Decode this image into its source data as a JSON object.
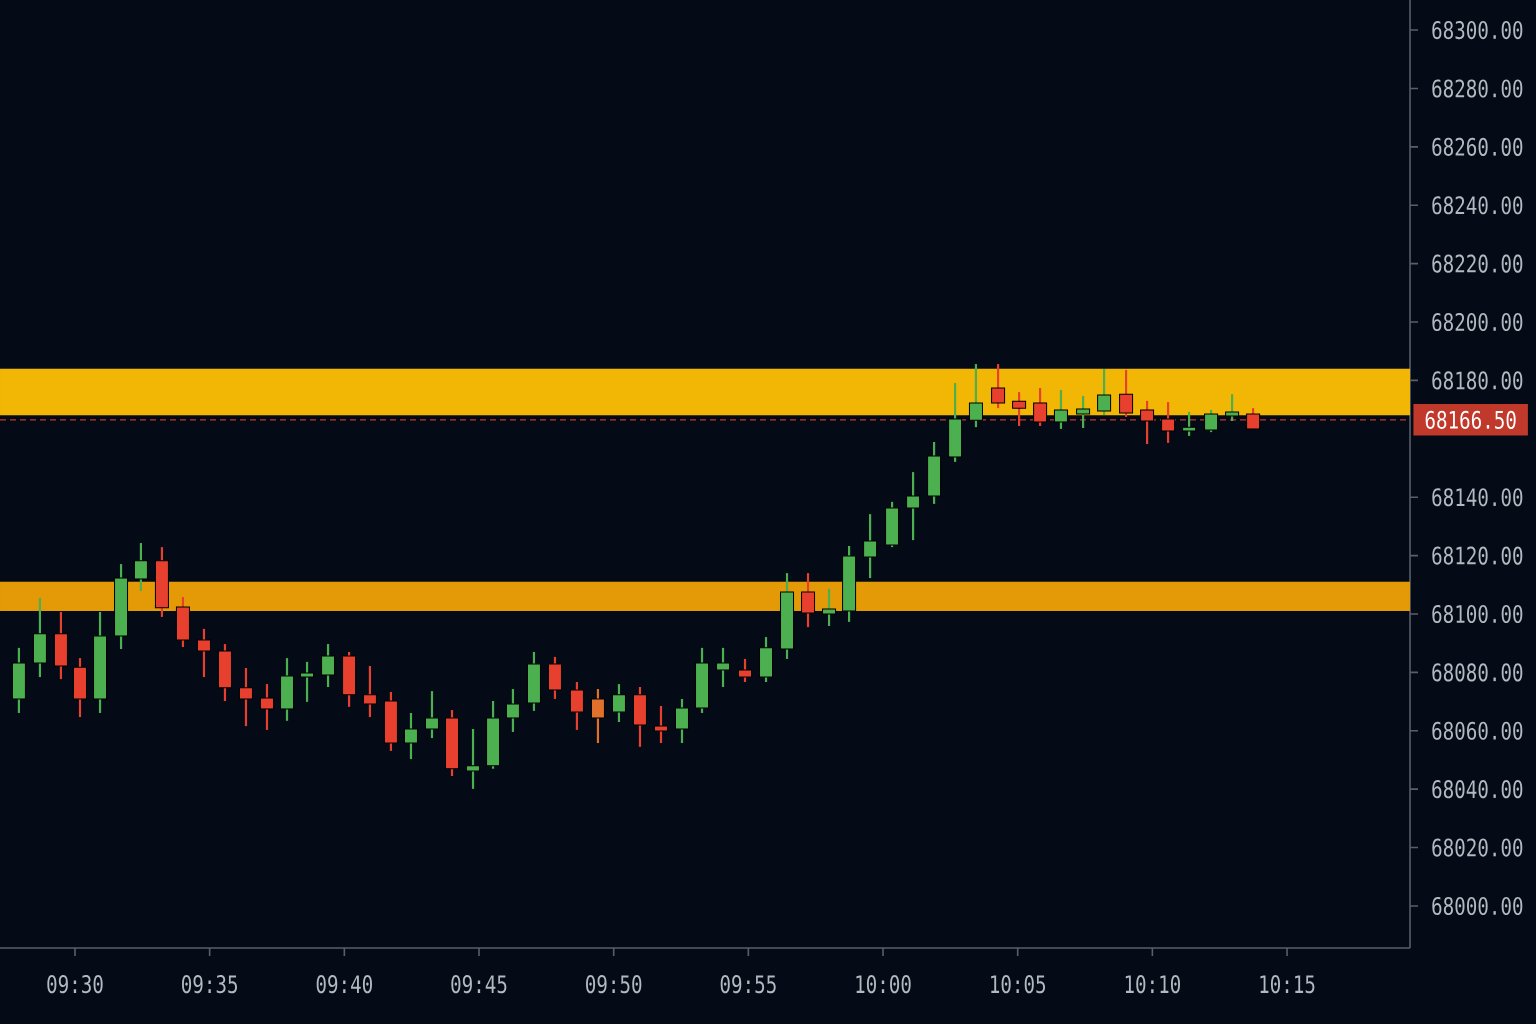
{
  "chart_data": {
    "type": "candlestick",
    "x": [
      9.4653,
      9.4783,
      9.4913,
      9.5031,
      9.5155,
      9.5285,
      9.5408,
      9.5538,
      9.5668,
      9.5798,
      9.5928,
      9.6058,
      9.6188,
      9.6312,
      9.6436,
      9.6566,
      9.6696,
      9.6825,
      9.6955,
      9.7079,
      9.7209,
      9.7333,
      9.7463,
      9.7587,
      9.771,
      9.784,
      9.797,
      9.8106,
      9.8236,
      9.8366,
      9.8496,
      9.8626,
      9.8756,
      9.888,
      9.901,
      9.9146,
      9.9276,
      9.9406,
      9.9536,
      9.9666,
      9.979,
      9.992,
      10.0056,
      10.0186,
      10.0316,
      10.0446,
      10.0575,
      10.0712,
      10.0842,
      10.0972,
      10.1101,
      10.1238,
      10.1368,
      10.1504,
      10.1634,
      10.1764,
      10.1894,
      10.203,
      10.216,
      10.229
    ],
    "ohlc": [
      [
        68070.9,
        68088.4,
        68066.1,
        68083.2
      ],
      [
        68083.2,
        68105.5,
        68078.4,
        68093.2
      ],
      [
        68093.2,
        68100.7,
        68077.7,
        68082.2
      ],
      [
        68081.8,
        68084.9,
        68064.7,
        68070.9
      ],
      [
        68070.9,
        68100.7,
        68066.1,
        68092.5
      ],
      [
        68092.5,
        68117.1,
        68088.0,
        68112.3
      ],
      [
        68112.0,
        68124.3,
        68107.9,
        68118.2
      ],
      [
        68118.2,
        68122.9,
        68099.0,
        68102.1
      ],
      [
        68102.4,
        68105.8,
        68088.7,
        68091.1
      ],
      [
        68091.1,
        68094.9,
        68078.4,
        68087.3
      ],
      [
        68087.3,
        68089.7,
        68070.2,
        68074.7
      ],
      [
        68074.7,
        68081.5,
        68061.6,
        68070.9
      ],
      [
        68071.2,
        68076.0,
        68060.3,
        68067.5
      ],
      [
        68067.5,
        68084.9,
        68063.4,
        68078.8
      ],
      [
        68078.4,
        68083.6,
        68069.9,
        68079.8
      ],
      [
        68079.1,
        68089.7,
        68075.0,
        68085.6
      ],
      [
        68085.6,
        68087.0,
        68068.2,
        68072.3
      ],
      [
        68072.3,
        68082.2,
        68064.7,
        68069.2
      ],
      [
        68070.2,
        68073.3,
        68053.1,
        68055.8
      ],
      [
        68055.8,
        68066.1,
        68050.3,
        68060.6
      ],
      [
        68060.6,
        68073.6,
        68057.5,
        68064.4
      ],
      [
        68064.4,
        68067.1,
        68044.5,
        68047.0
      ],
      [
        68046.2,
        68060.6,
        68040.1,
        68048.0
      ],
      [
        68048.0,
        68070.2,
        68047.0,
        68064.4
      ],
      [
        68064.4,
        68074.3,
        68059.6,
        68069.2
      ],
      [
        68069.5,
        68087.0,
        68066.8,
        68082.9
      ],
      [
        68082.9,
        68085.3,
        68070.9,
        68074.0
      ],
      [
        68074.0,
        68076.7,
        68060.3,
        68066.4
      ],
      [
        68070.9,
        68074.3,
        68055.8,
        68064.4
      ],
      [
        68066.4,
        68076.0,
        68063.0,
        68072.3
      ],
      [
        68072.3,
        68075.0,
        68054.5,
        68062.0
      ],
      [
        68061.6,
        68068.5,
        68055.8,
        68059.9
      ],
      [
        68060.6,
        68070.9,
        68055.8,
        68067.8
      ],
      [
        68067.8,
        68088.4,
        68066.1,
        68083.2
      ],
      [
        68080.8,
        68088.4,
        68075.0,
        68083.2
      ],
      [
        68080.8,
        68084.6,
        68076.7,
        68078.4
      ],
      [
        68078.4,
        68092.1,
        68076.7,
        68088.4
      ],
      [
        68088.0,
        68114.0,
        68084.6,
        68107.5
      ],
      [
        68107.5,
        68114.0,
        68095.5,
        68100.3
      ],
      [
        68100.0,
        68108.6,
        68095.9,
        68101.7
      ],
      [
        68101.0,
        68123.3,
        68097.3,
        68119.9
      ],
      [
        68119.5,
        68134.2,
        68112.3,
        68125.0
      ],
      [
        68123.6,
        68138.4,
        68122.9,
        68136.3
      ],
      [
        68136.3,
        68148.6,
        68125.3,
        68140.4
      ],
      [
        68140.4,
        68158.9,
        68137.7,
        68154.1
      ],
      [
        68153.8,
        68179.1,
        68152.1,
        68166.8
      ],
      [
        68166.4,
        68185.6,
        68164.0,
        68172.3
      ],
      [
        68177.4,
        68185.6,
        68170.5,
        68172.3
      ],
      [
        68172.9,
        68176.0,
        68164.4,
        68170.5
      ],
      [
        68172.3,
        68177.4,
        68164.4,
        68165.8
      ],
      [
        68165.8,
        68176.7,
        68163.4,
        68169.9
      ],
      [
        68168.5,
        68174.7,
        68163.7,
        68170.2
      ],
      [
        68169.5,
        68183.9,
        68168.2,
        68175.0
      ],
      [
        68175.3,
        68183.6,
        68167.5,
        68168.8
      ],
      [
        68169.9,
        68173.0,
        68158.2,
        68166.1
      ],
      [
        68166.8,
        68172.6,
        68158.6,
        68162.7
      ],
      [
        68162.7,
        68169.2,
        68161.0,
        68164.0
      ],
      [
        68163.0,
        68169.9,
        68162.3,
        68168.5
      ],
      [
        68167.8,
        68175.3,
        68166.1,
        68169.2
      ],
      [
        68168.5,
        68170.5,
        68163.4,
        68163.4
      ]
    ],
    "colors": [
      "#4caf50",
      "#4caf50",
      "#e8402f",
      "#e8402f",
      "#4caf50",
      "#4caf50",
      "#4caf50",
      "#e8402f",
      "#e8402f",
      "#e8402f",
      "#e8402f",
      "#e8402f",
      "#e8402f",
      "#4caf50",
      "#4caf50",
      "#4caf50",
      "#e8402f",
      "#e8402f",
      "#e8402f",
      "#4caf50",
      "#4caf50",
      "#e8402f",
      "#4caf50",
      "#4caf50",
      "#4caf50",
      "#4caf50",
      "#e8402f",
      "#e8402f",
      "#e0702c",
      "#4caf50",
      "#e8402f",
      "#e8402f",
      "#4caf50",
      "#4caf50",
      "#4caf50",
      "#e8402f",
      "#4caf50",
      "#4caf50",
      "#e8402f",
      "#4caf50",
      "#4caf50",
      "#4caf50",
      "#4caf50",
      "#4caf50",
      "#4caf50",
      "#4caf50",
      "#4caf50",
      "#e8402f",
      "#e8402f",
      "#e8402f",
      "#4caf50",
      "#4caf50",
      "#4caf50",
      "#e8402f",
      "#e8402f",
      "#e8402f",
      "#4caf50",
      "#4caf50",
      "#4caf50",
      "#e8402f"
    ],
    "xlim": [
      9.4536,
      10.3261
    ],
    "ylim": [
      67985.6,
      68310.3
    ],
    "xticks": [
      {
        "value": 9.5,
        "label": "09:30"
      },
      {
        "value": 9.583333,
        "label": "09:35"
      },
      {
        "value": 9.666667,
        "label": "09:40"
      },
      {
        "value": 9.75,
        "label": "09:45"
      },
      {
        "value": 9.833333,
        "label": "09:50"
      },
      {
        "value": 9.916667,
        "label": "09:55"
      },
      {
        "value": 10.0,
        "label": "10:00"
      },
      {
        "value": 10.083333,
        "label": "10:05"
      },
      {
        "value": 10.166667,
        "label": "10:10"
      },
      {
        "value": 10.25,
        "label": "10:15"
      }
    ],
    "yticks": [
      {
        "value": 68000,
        "label": "68000.00"
      },
      {
        "value": 68020,
        "label": "68020.00"
      },
      {
        "value": 68040,
        "label": "68040.00"
      },
      {
        "value": 68060,
        "label": "68060.00"
      },
      {
        "value": 68080,
        "label": "68080.00"
      },
      {
        "value": 68100,
        "label": "68100.00"
      },
      {
        "value": 68120,
        "label": "68120.00"
      },
      {
        "value": 68140,
        "label": "68140.00"
      },
      {
        "value": 68180,
        "label": "68180.00"
      },
      {
        "value": 68200,
        "label": "68200.00"
      },
      {
        "value": 68220,
        "label": "68220.00"
      },
      {
        "value": 68240,
        "label": "68240.00"
      },
      {
        "value": 68260,
        "label": "68260.00"
      },
      {
        "value": 68280,
        "label": "68280.00"
      },
      {
        "value": 68300,
        "label": "68300.00"
      }
    ],
    "ref_lines": [
      {
        "axis": "y",
        "value": 68166.5,
        "label": "68166.50",
        "color": "#c0392b",
        "line_style": "dashed"
      }
    ],
    "bands": [
      {
        "axis": "y",
        "from": 68168,
        "to": 68184,
        "color": "#f2b705"
      },
      {
        "axis": "y",
        "from": 68101,
        "to": 68111,
        "color": "#e39a06"
      }
    ]
  }
}
